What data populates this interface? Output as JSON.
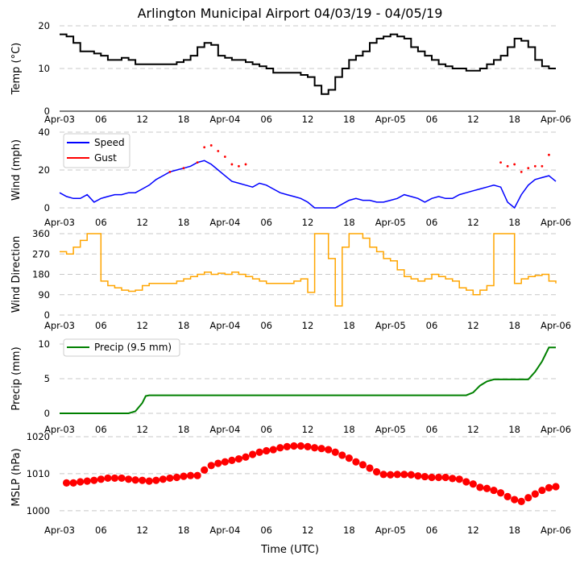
{
  "title": "Arlington Municipal Airport 04/03/19 - 04/05/19",
  "x_axis_label": "Time (UTC)",
  "x_tick_labels": [
    "Apr-03",
    "06",
    "12",
    "18",
    "Apr-04",
    "06",
    "12",
    "18",
    "Apr-05",
    "06",
    "12",
    "18",
    "Apr-06"
  ],
  "colors": {
    "temp": "#000000",
    "speed": "#0000ff",
    "gust": "#ff0000",
    "dir": "#ffa500",
    "precip": "#008000",
    "mslp": "#ff0000",
    "grid": "#c8c8c8"
  },
  "chart_data": [
    {
      "type": "line",
      "id": "temp",
      "ylabel": "Temp (°C)",
      "ylim": [
        0,
        20
      ],
      "yticks": [
        "0",
        "10",
        "20"
      ],
      "x_unit": "hours since 2019-04-03 00:00 UTC",
      "series": [
        {
          "name": "Temperature",
          "x": [
            0,
            1,
            2,
            3,
            4,
            5,
            6,
            7,
            8,
            9,
            10,
            11,
            12,
            13,
            14,
            15,
            16,
            17,
            18,
            19,
            20,
            21,
            22,
            23,
            24,
            25,
            26,
            27,
            28,
            29,
            30,
            31,
            32,
            33,
            34,
            35,
            36,
            37,
            38,
            39,
            40,
            41,
            42,
            43,
            44,
            45,
            46,
            47,
            48,
            49,
            50,
            51,
            52,
            53,
            54,
            55,
            56,
            57,
            58,
            59,
            60,
            61,
            62,
            63,
            64,
            65,
            66,
            67,
            68,
            69,
            70,
            71,
            72
          ],
          "y": [
            18,
            17.5,
            16,
            14,
            14,
            13.5,
            13,
            12,
            12,
            12.5,
            12,
            11,
            11,
            11,
            11,
            11,
            11,
            11.5,
            12,
            13,
            15,
            16,
            15.5,
            13,
            12.5,
            12,
            12,
            11.5,
            11,
            10.5,
            10,
            9,
            9,
            9,
            9,
            8.5,
            8,
            6,
            4,
            5,
            8,
            10,
            12,
            13,
            14,
            16,
            17,
            17.5,
            18,
            17.5,
            17,
            15,
            14,
            13,
            12,
            11,
            10.5,
            10,
            10,
            9.5,
            9.5,
            10,
            11,
            12,
            13,
            15,
            17,
            16.5,
            15,
            12,
            10.5,
            10,
            10
          ]
        }
      ]
    },
    {
      "type": "line",
      "id": "wind",
      "ylabel": "Wind (mph)",
      "ylim": [
        0,
        40
      ],
      "yticks": [
        "0",
        "20",
        "40"
      ],
      "legend": [
        "Speed",
        "Gust"
      ],
      "series": [
        {
          "name": "Speed",
          "x": [
            0,
            1,
            2,
            3,
            4,
            5,
            6,
            7,
            8,
            9,
            10,
            11,
            12,
            13,
            14,
            15,
            16,
            17,
            18,
            19,
            20,
            21,
            22,
            23,
            24,
            25,
            26,
            27,
            28,
            29,
            30,
            31,
            32,
            33,
            34,
            35,
            36,
            37,
            38,
            39,
            40,
            41,
            42,
            43,
            44,
            45,
            46,
            47,
            48,
            49,
            50,
            51,
            52,
            53,
            54,
            55,
            56,
            57,
            58,
            59,
            60,
            61,
            62,
            63,
            64,
            65,
            66,
            67,
            68,
            69,
            70,
            71,
            72
          ],
          "y": [
            8,
            6,
            5,
            5,
            7,
            3,
            5,
            6,
            7,
            7,
            8,
            8,
            10,
            12,
            15,
            17,
            19,
            20,
            21,
            22,
            24,
            25,
            23,
            20,
            17,
            14,
            13,
            12,
            11,
            13,
            12,
            10,
            8,
            7,
            6,
            5,
            3,
            0,
            0,
            0,
            0,
            2,
            4,
            5,
            4,
            4,
            3,
            3,
            4,
            5,
            7,
            6,
            5,
            3,
            5,
            6,
            5,
            5,
            7,
            8,
            9,
            10,
            11,
            12,
            11,
            3,
            0,
            7,
            12,
            15,
            16,
            17,
            14
          ]
        },
        {
          "name": "Gust",
          "x": [
            16,
            18,
            20,
            21,
            22,
            23,
            24,
            25,
            26,
            27,
            64,
            65,
            66,
            67,
            68,
            69,
            70,
            71
          ],
          "y": [
            19,
            21,
            24,
            32,
            33,
            30,
            27,
            23,
            22,
            23,
            24,
            22,
            23,
            19,
            21,
            22,
            22,
            28
          ]
        }
      ]
    },
    {
      "type": "line",
      "id": "dir",
      "ylabel": "Wind Direction",
      "ylim": [
        0,
        360
      ],
      "yticks": [
        "0",
        "90",
        "180",
        "270",
        "360"
      ],
      "series": [
        {
          "name": "Wind Direction",
          "x": [
            0,
            1,
            2,
            3,
            4,
            5,
            6,
            7,
            8,
            9,
            10,
            11,
            12,
            13,
            14,
            15,
            16,
            17,
            18,
            19,
            20,
            21,
            22,
            23,
            24,
            25,
            26,
            27,
            28,
            29,
            30,
            31,
            32,
            33,
            34,
            35,
            36,
            37,
            38,
            39,
            40,
            41,
            42,
            43,
            44,
            45,
            46,
            47,
            48,
            49,
            50,
            51,
            52,
            53,
            54,
            55,
            56,
            57,
            58,
            59,
            60,
            61,
            62,
            63,
            64,
            65,
            66,
            67,
            68,
            69,
            70,
            71,
            72
          ],
          "y": [
            280,
            270,
            300,
            330,
            360,
            360,
            150,
            130,
            120,
            110,
            105,
            110,
            130,
            140,
            140,
            140,
            140,
            150,
            160,
            170,
            180,
            190,
            180,
            185,
            180,
            190,
            180,
            170,
            160,
            150,
            140,
            140,
            140,
            140,
            150,
            160,
            100,
            360,
            360,
            250,
            40,
            300,
            360,
            360,
            340,
            300,
            280,
            250,
            240,
            200,
            170,
            160,
            150,
            160,
            180,
            170,
            160,
            150,
            120,
            110,
            90,
            110,
            130,
            360,
            360,
            360,
            140,
            160,
            170,
            175,
            180,
            150,
            140
          ]
        }
      ]
    },
    {
      "type": "line",
      "id": "precip",
      "ylabel": "Precip (mm)",
      "ylim": [
        0,
        10
      ],
      "yticks": [
        "0",
        "5",
        "10"
      ],
      "legend": [
        "Precip (9.5 mm)"
      ],
      "series": [
        {
          "name": "Precip (9.5 mm)",
          "x": [
            0,
            10,
            11,
            12,
            12.5,
            13,
            24,
            36,
            48,
            55,
            59,
            60,
            61,
            62,
            63,
            66,
            68,
            69,
            70,
            71,
            72
          ],
          "y": [
            0,
            0,
            0.3,
            1.5,
            2.5,
            2.6,
            2.6,
            2.6,
            2.6,
            2.6,
            2.6,
            3.0,
            4.0,
            4.6,
            4.9,
            4.9,
            4.9,
            6.0,
            7.5,
            9.5,
            9.5
          ]
        }
      ]
    },
    {
      "type": "scatter",
      "id": "mslp",
      "ylabel": "MSLP (hPa)",
      "ylim": [
        998,
        1020
      ],
      "yticks": [
        "1000",
        "1010",
        "1020"
      ],
      "series": [
        {
          "name": "MSLP",
          "x": [
            1,
            2,
            3,
            4,
            5,
            6,
            7,
            8,
            9,
            10,
            11,
            12,
            13,
            14,
            15,
            16,
            17,
            18,
            19,
            20,
            21,
            22,
            23,
            24,
            25,
            26,
            27,
            28,
            29,
            30,
            31,
            32,
            33,
            34,
            35,
            36,
            37,
            38,
            39,
            40,
            41,
            42,
            43,
            44,
            45,
            46,
            47,
            48,
            49,
            50,
            51,
            52,
            53,
            54,
            55,
            56,
            57,
            58,
            59,
            60,
            61,
            62,
            63,
            64,
            65,
            66,
            67,
            68,
            69,
            70,
            71,
            72
          ],
          "y": [
            1007.5,
            1007.5,
            1007.8,
            1008,
            1008.2,
            1008.5,
            1008.8,
            1008.8,
            1008.8,
            1008.5,
            1008.3,
            1008.2,
            1008.0,
            1008.2,
            1008.5,
            1008.8,
            1009.0,
            1009.3,
            1009.5,
            1009.5,
            1011,
            1012.2,
            1012.8,
            1013.2,
            1013.6,
            1014,
            1014.5,
            1015.2,
            1015.8,
            1016.2,
            1016.5,
            1017,
            1017.3,
            1017.5,
            1017.5,
            1017.3,
            1017,
            1016.8,
            1016.5,
            1015.8,
            1015,
            1014.2,
            1013.2,
            1012.4,
            1011.5,
            1010.5,
            1009.8,
            1009.7,
            1009.8,
            1009.8,
            1009.7,
            1009.4,
            1009.2,
            1009.0,
            1009.0,
            1009.0,
            1008.7,
            1008.5,
            1007.8,
            1007.2,
            1006.3,
            1006.0,
            1005.5,
            1004.8,
            1003.8,
            1003.0,
            1002.5,
            1003.5,
            1004.5,
            1005.5,
            1006.2,
            1006.5
          ]
        }
      ]
    }
  ]
}
